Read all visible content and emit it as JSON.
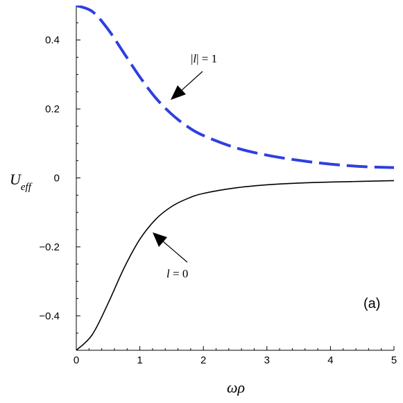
{
  "chart_data": {
    "type": "line",
    "xlabel": "ωρ",
    "ylabel": {
      "main": "U",
      "sub": "eff"
    },
    "xlim": [
      0,
      5
    ],
    "ylim": [
      -0.5,
      0.5
    ],
    "xticks": [
      0,
      1,
      2,
      3,
      4,
      5
    ],
    "xtick_labels": [
      "0",
      "1",
      "2",
      "3",
      "4",
      "5"
    ],
    "yticks": [
      -0.4,
      -0.2,
      0,
      0.2,
      0.4
    ],
    "ytick_labels": [
      "−0.4",
      "−0.2",
      "0",
      "0.2",
      "0.4"
    ],
    "grid": false,
    "panel_label": "(a)",
    "x": [
      0,
      0.25,
      0.5,
      0.75,
      1,
      1.25,
      1.5,
      1.75,
      2,
      2.5,
      3,
      3.5,
      4,
      4.5,
      5
    ],
    "series": [
      {
        "color": "#2f3fe0",
        "dash": "dashed",
        "values": [
          0.5,
          0.483,
          0.431,
          0.362,
          0.293,
          0.232,
          0.185,
          0.149,
          0.123,
          0.088,
          0.066,
          0.051,
          0.04,
          0.033,
          0.03
        ]
      },
      {
        "color": "#000000",
        "dash": "solid",
        "values": [
          -0.5,
          -0.455,
          -0.364,
          -0.262,
          -0.178,
          -0.12,
          -0.083,
          -0.06,
          -0.045,
          -0.029,
          -0.02,
          -0.015,
          -0.012,
          -0.01,
          -0.008
        ]
      }
    ],
    "annotations": [
      {
        "text_main": "|l| = 1",
        "italic_part": "l",
        "target_x": 1.45,
        "target_y": 0.22
      },
      {
        "text_main": "l = 0",
        "italic_part": "l",
        "target_x": 1.18,
        "target_y": -0.163
      }
    ]
  }
}
